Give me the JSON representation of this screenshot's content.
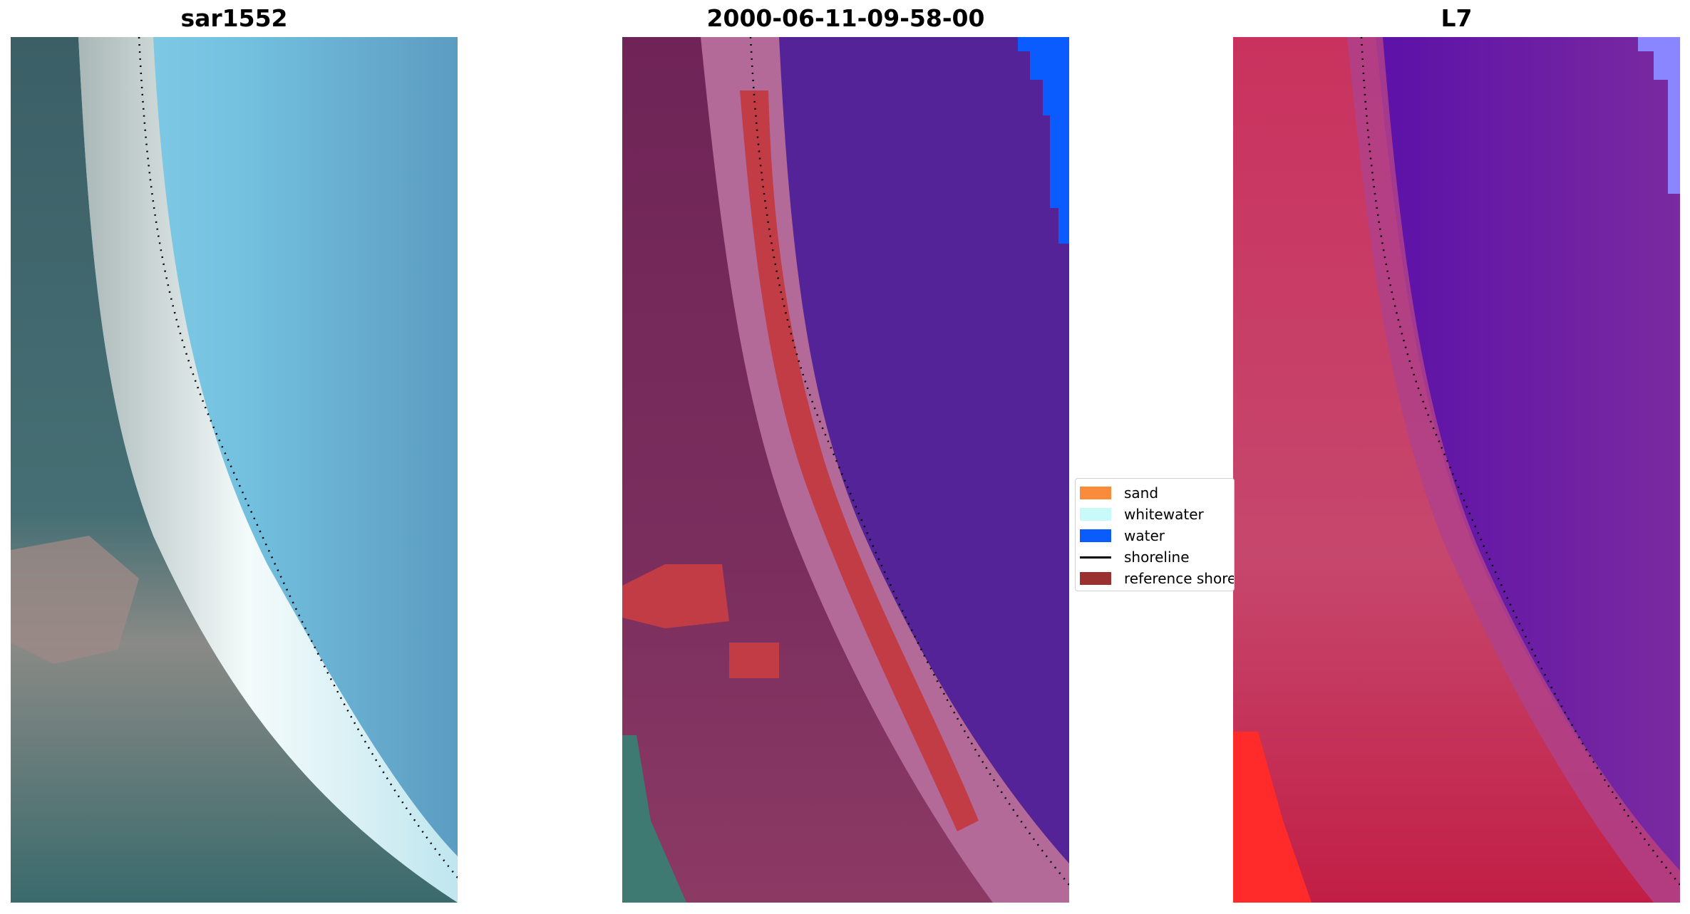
{
  "panels": [
    {
      "title": "sar1552",
      "view": "true-color"
    },
    {
      "title": "2000-06-11-09-58-00",
      "view": "classified"
    },
    {
      "title": "L7",
      "view": "false-color"
    }
  ],
  "legend": {
    "items": [
      {
        "label": "sand",
        "color": "#f98b3a",
        "kind": "patch"
      },
      {
        "label": "whitewater",
        "color": "#c8fafa",
        "kind": "patch"
      },
      {
        "label": "water",
        "color": "#0a5cff",
        "kind": "patch"
      },
      {
        "label": "shoreline",
        "color": "#000000",
        "kind": "line"
      },
      {
        "label": "reference shore",
        "color": "#9a3030",
        "kind": "patch"
      }
    ]
  },
  "colors": {
    "water_class": "#542398",
    "reference_shore": "#c13c44",
    "land_tint": "#6e2356",
    "falsecolor_land": "#c9325e",
    "falsecolor_water": "#6f1fa6",
    "truecolor_sea": "#72bde0",
    "truecolor_land": "#3f6b6e"
  }
}
